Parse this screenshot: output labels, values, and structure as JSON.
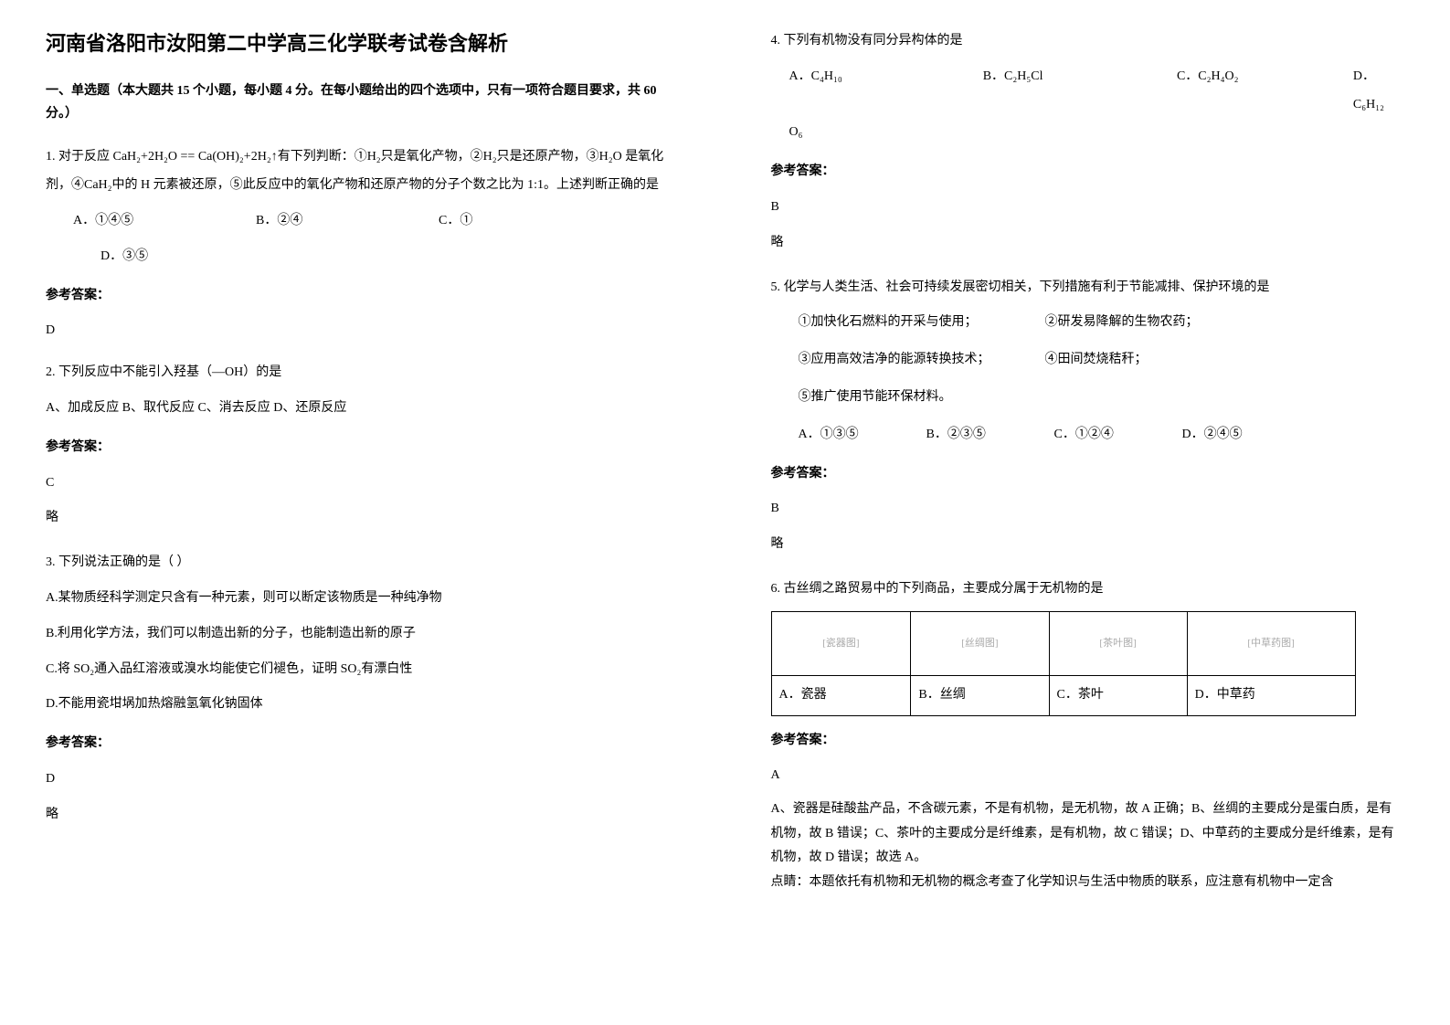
{
  "title": "河南省洛阳市汝阳第二中学高三化学联考试卷含解析",
  "section1": "一、单选题（本大题共 15 个小题，每小题 4 分。在每小题给出的四个选项中，只有一项符合题目要求，共 60 分。）",
  "q1": {
    "text": "1. 对于反应 CaH₂+2H₂O  ==  Ca(OH)₂+2H₂↑有下列判断：①H₂只是氧化产物，②H₂只是还原产物，③H₂O 是氧化剂，④CaH₂中的 H 元素被还原，⑤此反应中的氧化产物和还原产物的分子个数之比为 1:1。上述判断正确的是",
    "a": "A．①④⑤",
    "b": "B．②④",
    "c": "C．①",
    "d": "D．③⑤",
    "ans_label": "参考答案：",
    "ans": "D"
  },
  "q2": {
    "text": "2. 下列反应中不能引入羟基（—OH）的是",
    "opts": "A、加成反应    B、取代反应  C、消去反应   D、还原反应",
    "ans_label": "参考答案：",
    "ans": "C",
    "note": "略"
  },
  "q3": {
    "text": "3. 下列说法正确的是（   ）",
    "a": "A.某物质经科学测定只含有一种元素，则可以断定该物质是一种纯净物",
    "b": "B.利用化学方法，我们可以制造出新的分子，也能制造出新的原子",
    "c": "C.将 SO₂通入品红溶液或溴水均能使它们褪色，证明 SO₂有漂白性",
    "d": "D.不能用瓷坩埚加热熔融氢氧化钠固体",
    "ans_label": "参考答案：",
    "ans": "D",
    "note": "略"
  },
  "q4": {
    "text": "4. 下列有机物没有同分异构体的是",
    "a": "A．C₄H₁₀",
    "b": "B．C₂H₅Cl",
    "c": "C．C₂H₄O₂",
    "d": "D．C₆H₁₂",
    "extra": "O₆",
    "ans_label": "参考答案：",
    "ans": "B",
    "note": "略"
  },
  "q5": {
    "text": "5. 化学与人类生活、社会可持续发展密切相关，下列措施有利于节能减排、保护环境的是",
    "s1": "①加快化石燃料的开采与使用；",
    "s2": "②研发易降解的生物农药；",
    "s3": "③应用高效洁净的能源转换技术；",
    "s4": "④田间焚烧秸秆；",
    "s5": "⑤推广使用节能环保材料。",
    "a": "A．①③⑤",
    "b": "B．②③⑤",
    "c": "C．①②④",
    "d": "D．②④⑤",
    "ans_label": "参考答案：",
    "ans": "B",
    "note": "略"
  },
  "q6": {
    "text": "6. 古丝绸之路贸易中的下列商品，主要成分属于无机物的是",
    "a": "A．瓷器",
    "b": "B．丝绸",
    "c": "C．茶叶",
    "d": "D．中草药",
    "img_a": "[瓷器图]",
    "img_b": "[丝绸图]",
    "img_c": "[茶叶图]",
    "img_d": "[中草药图]",
    "ans_label": "参考答案：",
    "ans": "A",
    "explain": "A、瓷器是硅酸盐产品，不含碳元素，不是有机物，是无机物，故 A 正确；B、丝绸的主要成分是蛋白质，是有机物，故 B 错误；C、茶叶的主要成分是纤维素，是有机物，故 C 错误；D、中草药的主要成分是纤维素，是有机物，故 D 错误；故选 A。",
    "tip": "点睛：本题依托有机物和无机物的概念考查了化学知识与生活中物质的联系，应注意有机物中一定含"
  }
}
